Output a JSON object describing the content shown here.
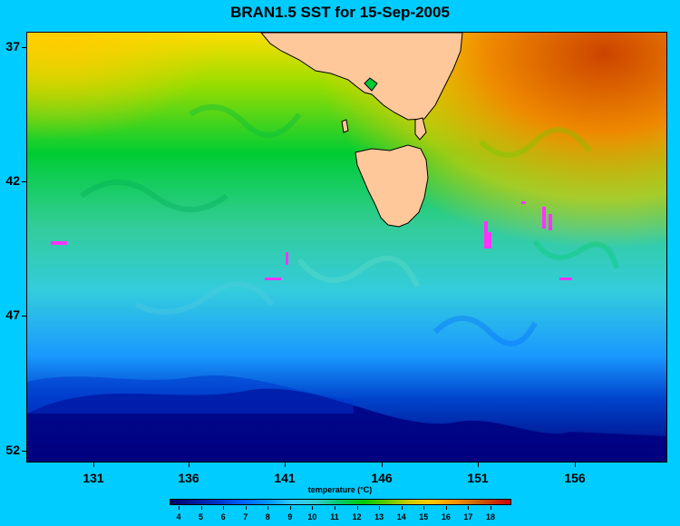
{
  "title": "BRAN1.5 SST for 15-Sep-2005",
  "map": {
    "y_axis": {
      "labels": [
        "37",
        "42",
        "47",
        "52"
      ]
    },
    "x_axis": {
      "labels": [
        "131",
        "136",
        "141",
        "146",
        "151",
        "156"
      ]
    }
  },
  "colorbar": {
    "title": "temperature (°C)",
    "labels": [
      "4",
      "5",
      "6",
      "7",
      "8",
      "9",
      "10",
      "11",
      "12",
      "13",
      "14",
      "15",
      "16",
      "17",
      "18"
    ]
  }
}
